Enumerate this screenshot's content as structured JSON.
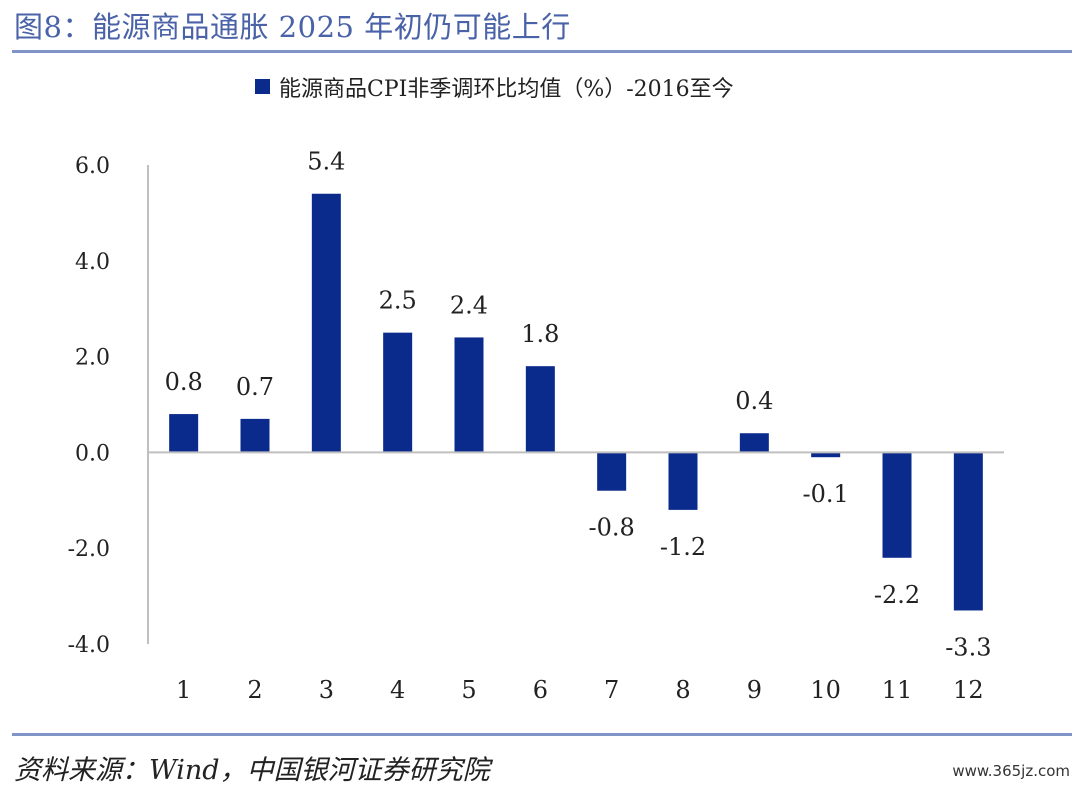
{
  "figure_title": "图8：能源商品通胀 2025 年初仍可能上行",
  "source": "资料来源：Wind，中国银河证券研究院",
  "watermark": "www.365jz.com",
  "colors": {
    "bar": "#0a2a8c",
    "title": "#4a62a8",
    "rule": "#8094c8",
    "axis": "#bfbfbf"
  },
  "chart_data": {
    "type": "bar",
    "legend_position": "top",
    "grid": false,
    "categories": [
      "1",
      "2",
      "3",
      "4",
      "5",
      "6",
      "7",
      "8",
      "9",
      "10",
      "11",
      "12"
    ],
    "series": [
      {
        "name": "能源商品CPI非季调环比均值（%）-2016至今",
        "values": [
          0.8,
          0.7,
          5.4,
          2.5,
          2.4,
          1.8,
          -0.8,
          -1.2,
          0.4,
          -0.1,
          -2.2,
          -3.3
        ]
      }
    ],
    "ylim": [
      -4.0,
      6.0
    ],
    "yticks": [
      "6.0",
      "4.0",
      "2.0",
      "0.0",
      "-2.0",
      "-4.0"
    ],
    "data_labels": [
      "0.8",
      "0.7",
      "5.4",
      "2.5",
      "2.4",
      "1.8",
      "-0.8",
      "-1.2",
      "0.4",
      "-0.1",
      "-2.2",
      "-3.3"
    ]
  }
}
